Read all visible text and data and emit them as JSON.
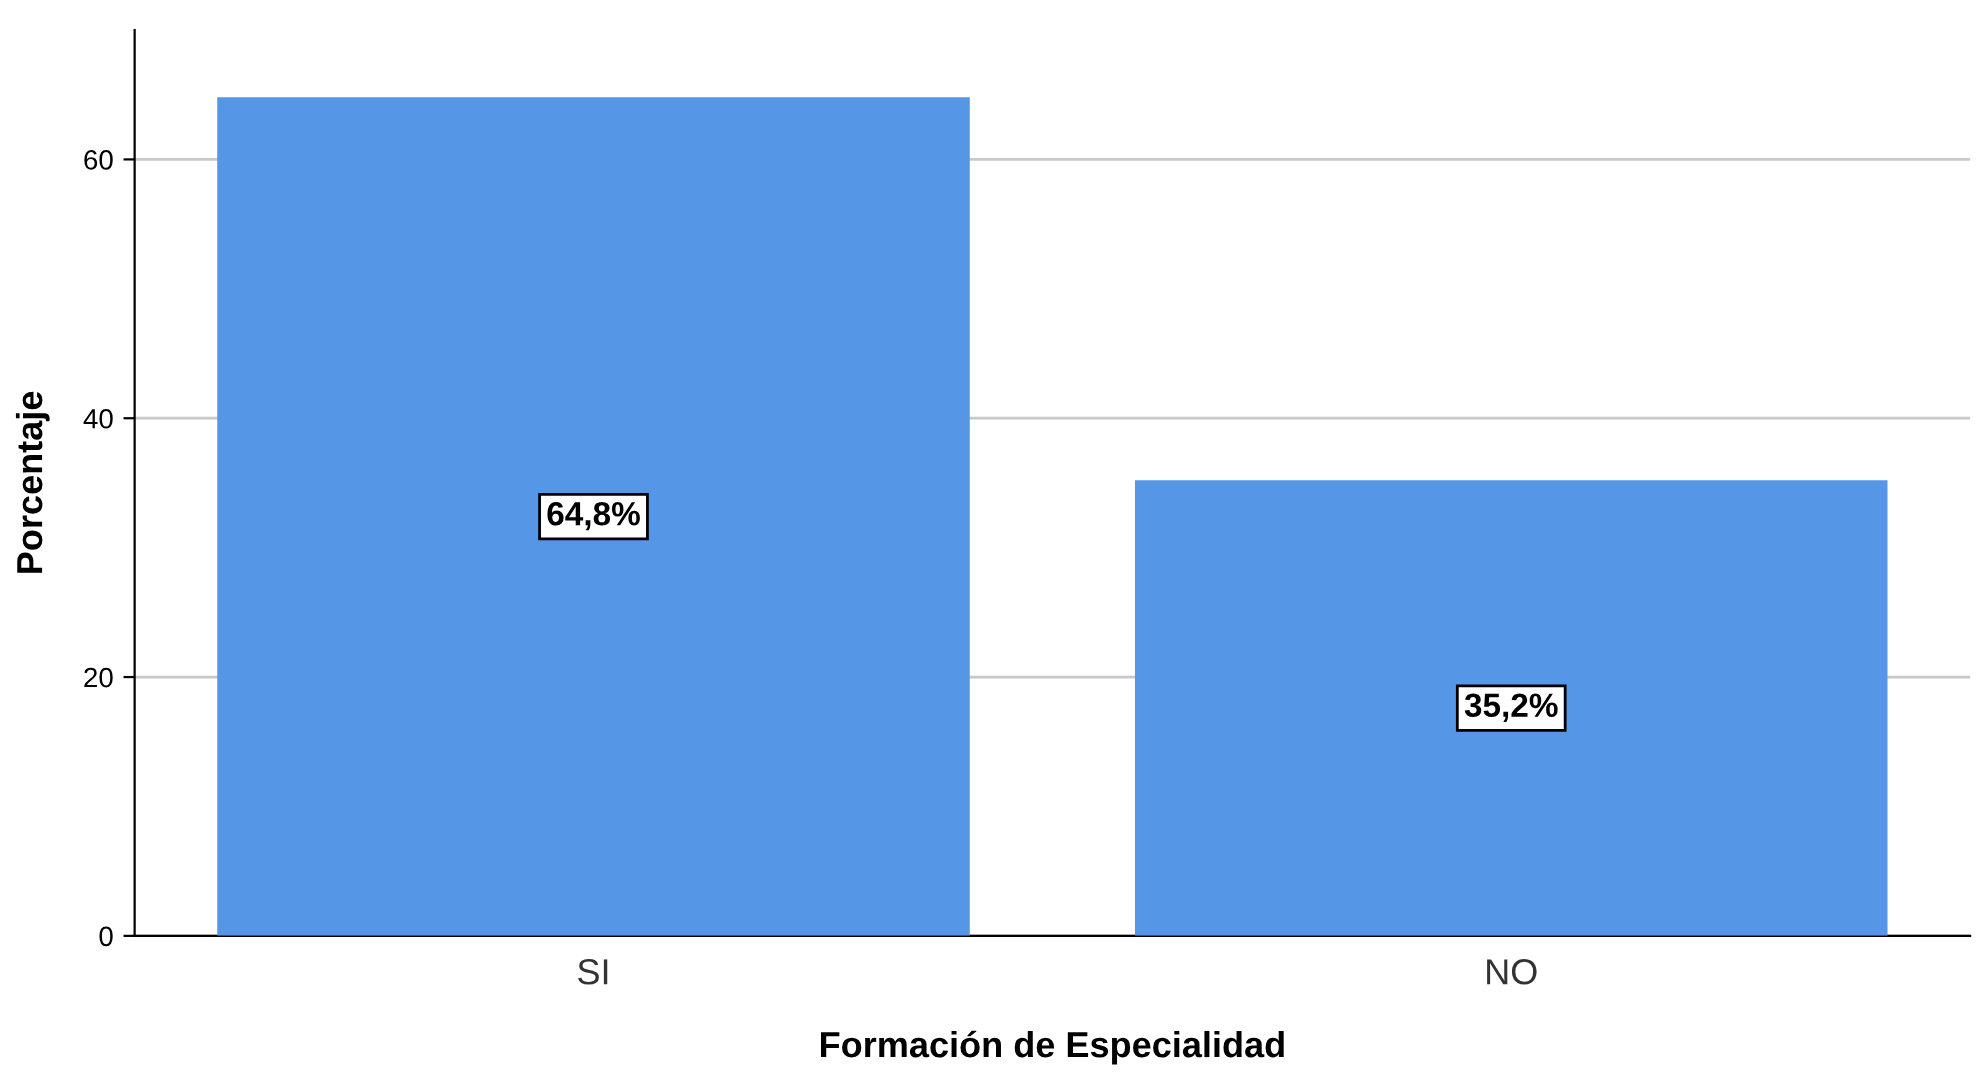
{
  "chart_data": {
    "type": "bar",
    "xlabel": "Formación de Especialidad",
    "ylabel": "Porcentaje",
    "categories": [
      "SI",
      "NO"
    ],
    "values": [
      64.8,
      35.2
    ],
    "value_labels": [
      "64,8%",
      "35,2%"
    ],
    "color": "#5596e6",
    "ylim": [
      0,
      70
    ],
    "yticks": [
      0,
      20,
      40,
      60
    ],
    "grid": "y"
  }
}
